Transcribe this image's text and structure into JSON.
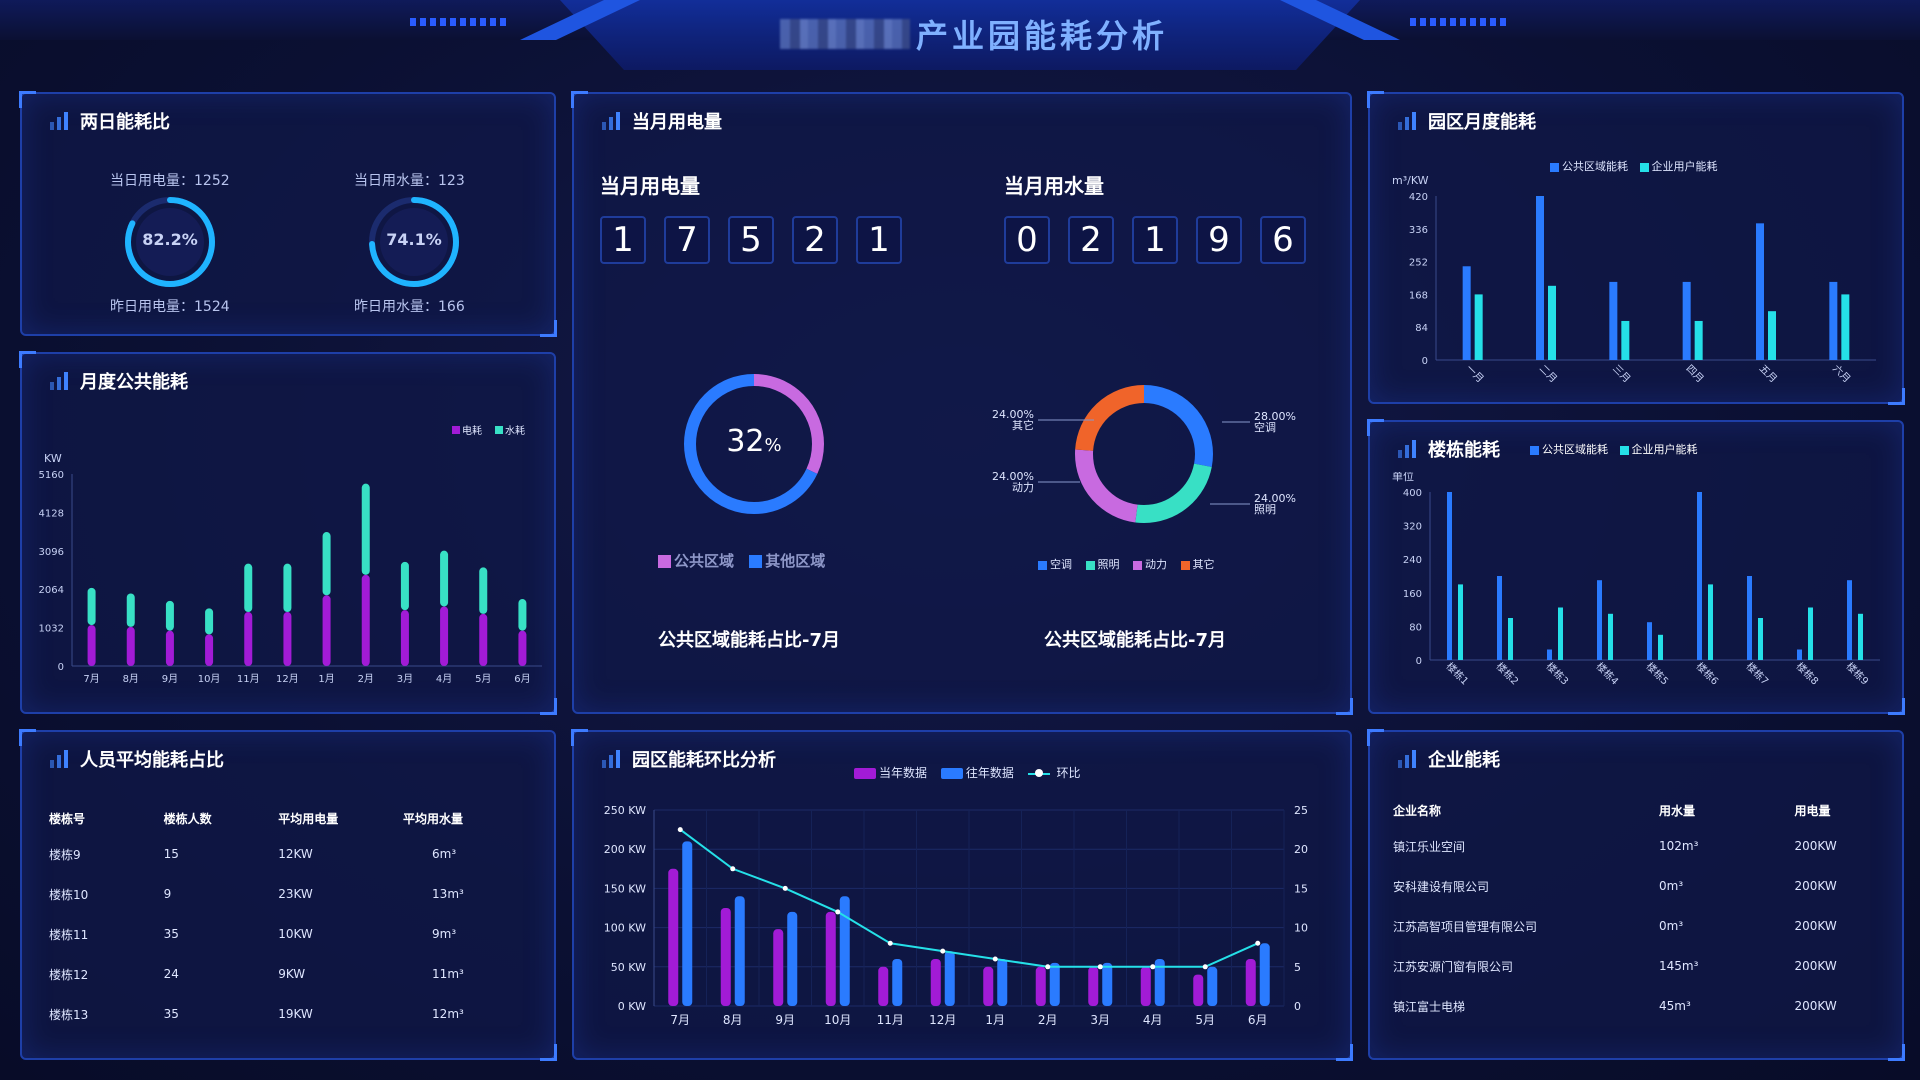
{
  "header": {
    "title": "产业园能耗分析"
  },
  "two_day": {
    "title": "两日能耗比",
    "elec_today_label": "当日用电量：1252",
    "elec_yesterday_label": "昨日用电量：1524",
    "elec_ratio": "82.2%",
    "elec_ratio_value": 0.822,
    "water_today_label": "当日用水量：123",
    "water_yesterday_label": "昨日用水量：166",
    "water_ratio": "74.1%",
    "water_ratio_value": 0.741
  },
  "monthly_public": {
    "title": "月度公共能耗",
    "unit": "KW",
    "legend": [
      "电耗",
      "水耗"
    ],
    "y_ticks": [
      "5160",
      "4128",
      "3096",
      "2064",
      "1032",
      "0"
    ]
  },
  "current_month": {
    "title": "当月用电量",
    "elec_label": "当月用电量",
    "elec_digits": [
      "1",
      "7",
      "5",
      "2",
      "1"
    ],
    "water_label": "当月用水量",
    "water_digits": [
      "0",
      "2",
      "1",
      "9",
      "6"
    ],
    "donut1_center": "32",
    "donut1_unit": "%",
    "donut1_legend": [
      "公共区域",
      "其他区域"
    ],
    "donut1_caption": "公共区域能耗占比-7月",
    "donut2_caption": "公共区域能耗占比-7月",
    "donut2_legend": [
      "空调",
      "照明",
      "动力",
      "其它"
    ],
    "donut2_labels": [
      {
        "pct": "28.00%",
        "name": "空调"
      },
      {
        "pct": "24.00%",
        "name": "照明"
      },
      {
        "pct": "24.00%",
        "name": "动力"
      },
      {
        "pct": "24.00%",
        "name": "其它"
      }
    ]
  },
  "park_monthly": {
    "title": "园区月度能耗",
    "legend": [
      "公共区域能耗",
      "企业用户能耗"
    ],
    "unit": "m³/KW",
    "y_ticks": [
      "420",
      "336",
      "252",
      "168",
      "84",
      "0"
    ]
  },
  "building": {
    "title": "楼栋能耗",
    "legend": [
      "公共区域能耗",
      "企业用户能耗"
    ],
    "unit": "单位",
    "y_ticks": [
      "400",
      "320",
      "240",
      "160",
      "80",
      "0"
    ]
  },
  "per_person": {
    "title": "人员平均能耗占比",
    "columns": [
      "楼栋号",
      "楼栋人数",
      "平均用电量",
      "平均用水量"
    ],
    "rows": [
      [
        "楼栋9",
        "15",
        "12KW",
        "6m³"
      ],
      [
        "楼栋10",
        "9",
        "23KW",
        "13m³"
      ],
      [
        "楼栋11",
        "35",
        "10KW",
        "9m³"
      ],
      [
        "楼栋12",
        "24",
        "9KW",
        "11m³"
      ],
      [
        "楼栋13",
        "35",
        "19KW",
        "12m³"
      ]
    ]
  },
  "ratio_analysis": {
    "title": "园区能耗环比分析",
    "legend": [
      "当年数据",
      "往年数据",
      "环比"
    ],
    "y_left_ticks": [
      "250 KW",
      "200 KW",
      "150 KW",
      "100 KW",
      "50 KW",
      "0 KW"
    ],
    "y_right_ticks": [
      "25",
      "20",
      "15",
      "10",
      "5",
      "0"
    ]
  },
  "enterprise": {
    "title": "企业能耗",
    "columns": [
      "企业名称",
      "用水量",
      "用电量"
    ],
    "rows": [
      [
        "镇江乐业空间",
        "102m³",
        "200KW"
      ],
      [
        "安科建设有限公司",
        "0m³",
        "200KW"
      ],
      [
        "江苏高智项目管理有限公司",
        "0m³",
        "200KW"
      ],
      [
        "江苏安源门窗有限公司",
        "145m³",
        "200KW"
      ],
      [
        "镇江富士电梯",
        "45m³",
        "200KW"
      ]
    ]
  },
  "colors": {
    "purple": "#a21bd6",
    "teal": "#38e0c5",
    "blue": "#2a7bff",
    "cyan": "#25e0e8",
    "orange": "#f0642a",
    "violet": "#c86ae0"
  },
  "chart_data": [
    {
      "type": "bar",
      "id": "monthly_public",
      "categories": [
        "7月",
        "8月",
        "9月",
        "10月",
        "11月",
        "12月",
        "1月",
        "2月",
        "3月",
        "4月",
        "5月",
        "6月"
      ],
      "series": [
        {
          "name": "电耗",
          "values": [
            1100,
            1050,
            950,
            850,
            1450,
            1450,
            1900,
            2450,
            1500,
            1600,
            1400,
            950
          ]
        },
        {
          "name": "水耗",
          "values": [
            1000,
            900,
            800,
            700,
            1300,
            1300,
            1700,
            2450,
            1300,
            1500,
            1250,
            850
          ]
        }
      ],
      "stacked": true,
      "ylabel": "KW",
      "ylim": [
        0,
        5160
      ]
    },
    {
      "type": "bar",
      "id": "park_monthly",
      "categories": [
        "一月",
        "二月",
        "三月",
        "四月",
        "五月",
        "六月"
      ],
      "series": [
        {
          "name": "公共区域能耗",
          "values": [
            240,
            420,
            200,
            200,
            350,
            200
          ]
        },
        {
          "name": "企业用户能耗",
          "values": [
            168,
            190,
            100,
            100,
            125,
            168
          ]
        }
      ],
      "ylabel": "m³/KW",
      "ylim": [
        0,
        420
      ]
    },
    {
      "type": "bar",
      "id": "building",
      "categories": [
        "楼栋1",
        "楼栋2",
        "楼栋3",
        "楼栋4",
        "楼栋5",
        "楼栋6",
        "楼栋7",
        "楼栋8",
        "楼栋9"
      ],
      "series": [
        {
          "name": "公共区域能耗",
          "values": [
            400,
            200,
            25,
            190,
            90,
            400,
            200,
            25,
            190
          ]
        },
        {
          "name": "企业用户能耗",
          "values": [
            180,
            100,
            125,
            110,
            60,
            180,
            100,
            125,
            110
          ]
        }
      ],
      "ylabel": "单位",
      "ylim": [
        0,
        400
      ]
    },
    {
      "type": "bar",
      "id": "ratio_analysis",
      "categories": [
        "7月",
        "8月",
        "9月",
        "10月",
        "11月",
        "12月",
        "1月",
        "2月",
        "3月",
        "4月",
        "5月",
        "6月"
      ],
      "series": [
        {
          "name": "当年数据",
          "values": [
            175,
            125,
            98,
            120,
            50,
            60,
            50,
            50,
            50,
            50,
            40,
            60
          ]
        },
        {
          "name": "往年数据",
          "values": [
            210,
            140,
            120,
            140,
            60,
            70,
            60,
            55,
            55,
            60,
            50,
            80
          ]
        },
        {
          "name": "环比",
          "values": [
            22.5,
            17.5,
            15,
            12,
            8,
            7,
            6,
            5,
            5,
            5,
            5,
            8
          ],
          "axis": "right",
          "type": "line"
        }
      ],
      "ylim": [
        0,
        250
      ],
      "y2lim": [
        0,
        25
      ]
    },
    {
      "type": "pie",
      "id": "donut1",
      "labels": [
        "公共区域",
        "其他区域"
      ],
      "values": [
        32,
        68
      ]
    },
    {
      "type": "pie",
      "id": "donut2",
      "labels": [
        "空调",
        "照明",
        "动力",
        "其它"
      ],
      "values": [
        28,
        24,
        24,
        24
      ]
    }
  ]
}
